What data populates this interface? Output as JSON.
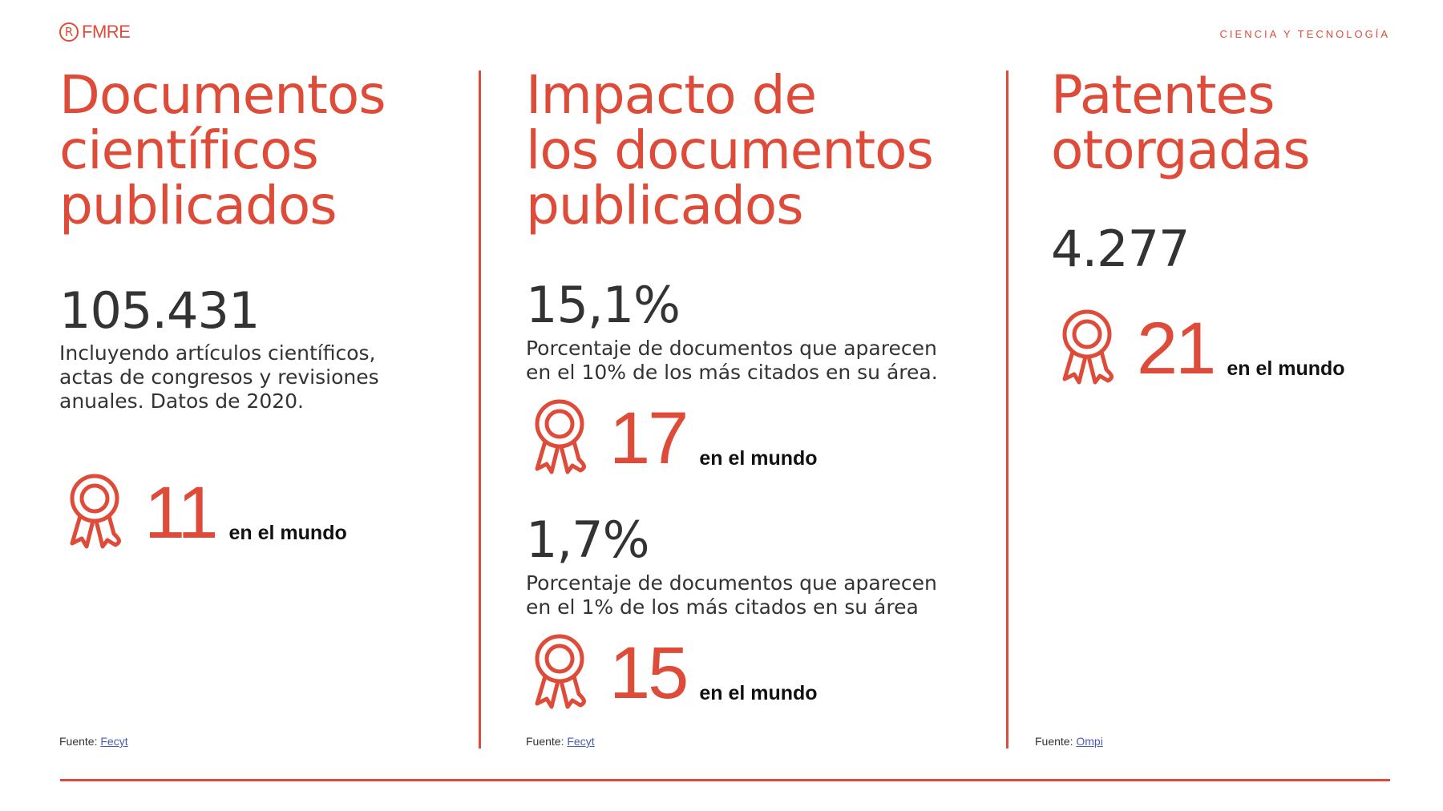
{
  "header": {
    "logo_text": "FMRE",
    "logo_mark": "R",
    "section_label": "CIENCIA Y TECNOLOGÍA"
  },
  "columns": [
    {
      "heading": [
        "Documentos",
        "científicos",
        "publicados"
      ],
      "value": "105.431",
      "description": [
        "Incluyendo artículos científicos,",
        "actas de congresos y revisiones",
        "anuales. Datos de 2020."
      ],
      "rank": {
        "icon": "award-ribbon-icon",
        "number": "11",
        "suffix": "en el mundo"
      },
      "source": {
        "label": "Fuente:",
        "link_text": "Fecyt"
      }
    },
    {
      "heading": [
        "Impacto de",
        "los documentos",
        "publicados"
      ],
      "metrics": [
        {
          "value": "15,1%",
          "description": [
            "Porcentaje de documentos que aparecen",
            "en el 10% de los más citados en su área."
          ],
          "rank": {
            "icon": "award-ribbon-icon",
            "number": "17",
            "suffix": "en el mundo"
          }
        },
        {
          "value": "1,7%",
          "description": [
            "Porcentaje de documentos que aparecen",
            "en el 1% de los más citados en su área"
          ],
          "rank": {
            "icon": "award-ribbon-icon",
            "number": "15",
            "suffix": "en el mundo"
          }
        }
      ],
      "source": {
        "label": "Fuente:",
        "link_text": "Fecyt"
      }
    },
    {
      "heading": [
        "Patentes",
        "otorgadas"
      ],
      "value": "4.277",
      "rank": {
        "icon": "award-ribbon-icon",
        "number": "21",
        "suffix": "en el mundo"
      },
      "source": {
        "label": "Fuente:",
        "link_text": "Ompi"
      }
    }
  ],
  "colors": {
    "accent": "#de4c39",
    "text": "#333333",
    "link": "#4a5bb5"
  }
}
